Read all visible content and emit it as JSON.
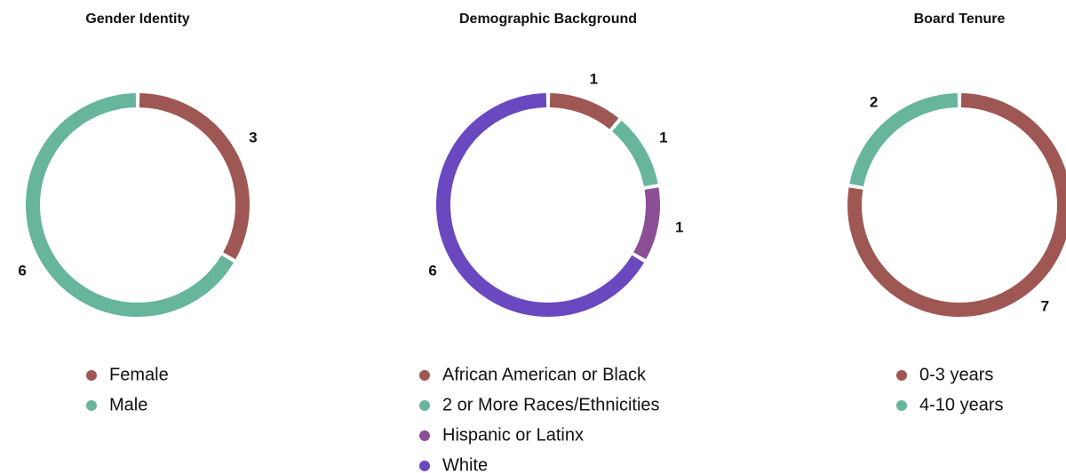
{
  "chart_data": [
    {
      "type": "pie",
      "title": "Gender Identity",
      "categories": [
        "Female",
        "Male"
      ],
      "values": [
        3,
        6
      ],
      "colors": [
        "#9e5752",
        "#66b59c"
      ]
    },
    {
      "type": "pie",
      "title": "Demographic Background",
      "categories": [
        "African American or Black",
        "2 or More Races/Ethnicities",
        "Hispanic or Latinx",
        "White"
      ],
      "values": [
        1,
        1,
        1,
        6
      ],
      "colors": [
        "#9e5752",
        "#66b59c",
        "#8c4f96",
        "#6a48c0"
      ]
    },
    {
      "type": "pie",
      "title": "Board Tenure",
      "categories": [
        "0-3 years",
        "4-10 years"
      ],
      "values": [
        7,
        2
      ],
      "colors": [
        "#9e5752",
        "#66b59c"
      ]
    }
  ]
}
